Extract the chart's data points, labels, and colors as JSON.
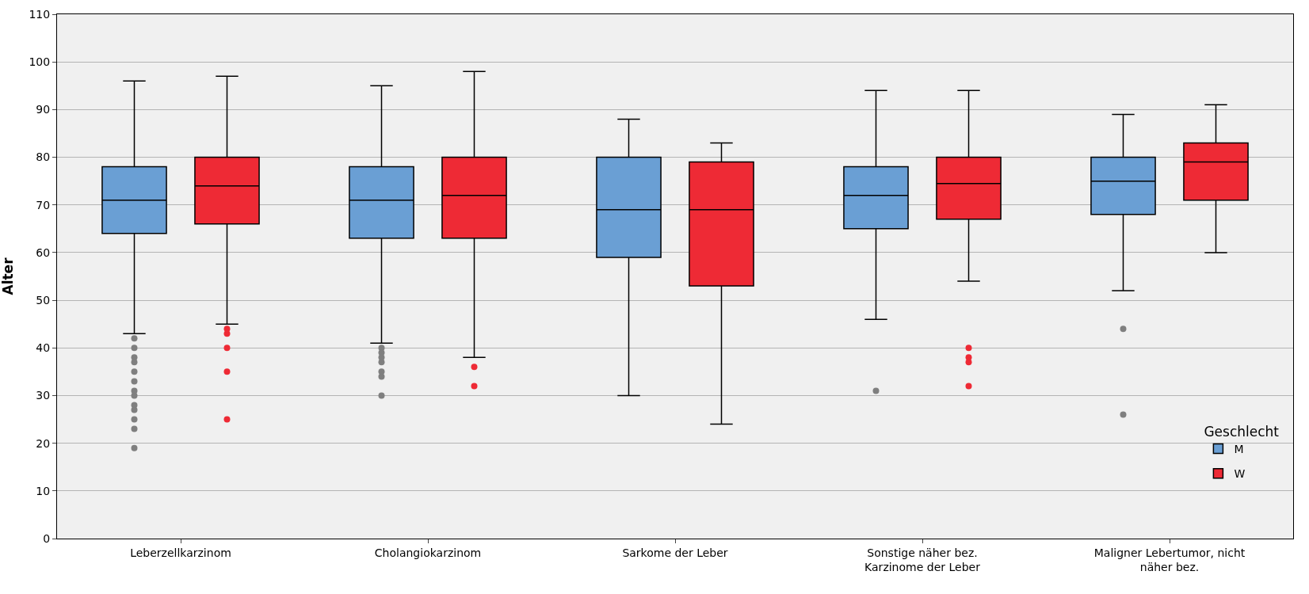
{
  "chart_data": {
    "type": "box",
    "ylabel": "Alter",
    "legend_title": "Geschlecht",
    "legend": "bottom right",
    "grid": "y",
    "categories": [
      "Leberzellkarzinom",
      "Cholangiokarzinom",
      "Sarkome der Leber",
      "Sonstige näher bez. Karzinome der Leber",
      "Maligner Lebertumor, nicht näher bez."
    ],
    "ylim": [
      0,
      110
    ],
    "yticks": [
      0,
      10,
      20,
      30,
      40,
      50,
      60,
      70,
      80,
      90,
      100,
      110
    ],
    "series": [
      {
        "name": "M",
        "color": "#6a9fd4",
        "boxes": [
          {
            "low": 43,
            "q1": 64,
            "median": 71,
            "q3": 78,
            "high": 96,
            "outliers": [
              42,
              40,
              38,
              37,
              35,
              33,
              31,
              30,
              28,
              27,
              25,
              23,
              19
            ]
          },
          {
            "low": 41,
            "q1": 63,
            "median": 71,
            "q3": 78,
            "high": 95,
            "outliers": [
              40,
              39,
              38,
              37,
              35,
              34,
              30
            ]
          },
          {
            "low": 30,
            "q1": 59,
            "median": 69,
            "q3": 80,
            "high": 88
          },
          {
            "low": 46,
            "q1": 65,
            "median": 72,
            "q3": 78,
            "high": 94,
            "outliers": [
              31
            ]
          },
          {
            "low": 52,
            "q1": 68,
            "median": 75,
            "q3": 80,
            "high": 89,
            "outliers": [
              44,
              26
            ]
          }
        ]
      },
      {
        "name": "W",
        "color": "#ee2a35",
        "boxes": [
          {
            "low": 45,
            "q1": 66,
            "median": 74,
            "q3": 80,
            "high": 97,
            "outliers": [
              44,
              43,
              40,
              35,
              25
            ]
          },
          {
            "low": 38,
            "q1": 63,
            "median": 72,
            "q3": 80,
            "high": 98,
            "outliers": [
              36,
              32
            ]
          },
          {
            "low": 24,
            "q1": 53,
            "median": 69,
            "q3": 79,
            "high": 83
          },
          {
            "low": 54,
            "q1": 67,
            "median": 74.5,
            "q3": 80,
            "high": 94,
            "outliers": [
              40,
              38,
              37,
              32
            ]
          },
          {
            "low": 60,
            "q1": 71,
            "median": 79,
            "q3": 83,
            "high": 91
          }
        ]
      }
    ]
  }
}
